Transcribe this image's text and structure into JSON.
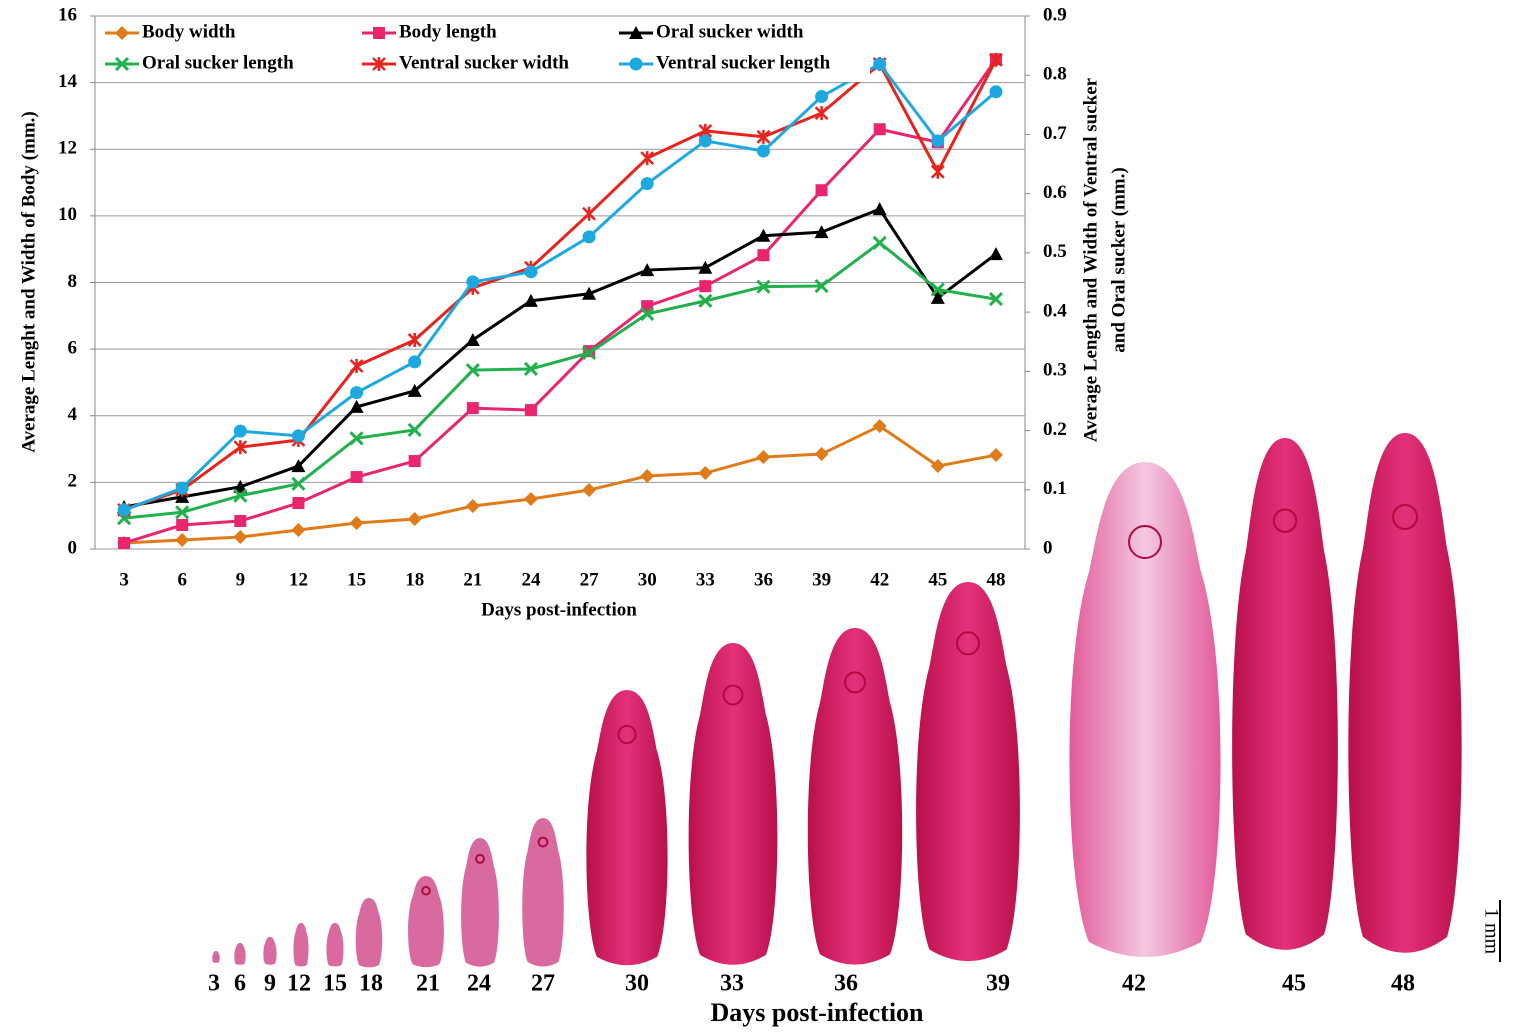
{
  "chart_data": {
    "type": "line",
    "ylabel": "Average Lenght and Width of Body (mm.)",
    "y2label": [
      "Average Length and Width of Ventral sucker",
      "and Oral sucker (mm.)"
    ],
    "xlabel": "Days post-infection",
    "categories": [
      3,
      6,
      9,
      12,
      15,
      18,
      21,
      24,
      27,
      30,
      33,
      36,
      39,
      42,
      45,
      48
    ],
    "ylim": [
      0,
      16
    ],
    "yticks": [
      0,
      2,
      4,
      6,
      8,
      10,
      12,
      14,
      16
    ],
    "y2lim": [
      0,
      0.9
    ],
    "y2ticks": [
      0,
      0.1,
      0.2,
      0.3,
      0.4,
      0.5,
      0.6,
      0.7,
      0.8,
      0.9
    ],
    "grid": true,
    "legend": "top-left",
    "series": [
      {
        "name": "Body width",
        "color": "#e07b1a",
        "marker": "diamond",
        "values": [
          0.18,
          0.27,
          0.36,
          0.57,
          0.78,
          0.9,
          1.29,
          1.5,
          1.77,
          2.19,
          2.28,
          2.76,
          2.85,
          3.69,
          2.49,
          2.82
        ]
      },
      {
        "name": "Body length",
        "color": "#e8256e",
        "marker": "square",
        "values": [
          0.18,
          0.72,
          0.84,
          1.38,
          2.16,
          2.64,
          4.23,
          4.17,
          5.94,
          7.29,
          7.89,
          8.82,
          10.77,
          12.6,
          12.21,
          14.7
        ]
      },
      {
        "name": "Oral sucker width",
        "color": "#000000",
        "marker": "triangle",
        "axis": "y2",
        "values": [
          0.071,
          0.088,
          0.105,
          0.14,
          0.24,
          0.267,
          0.353,
          0.419,
          0.431,
          0.471,
          0.475,
          0.529,
          0.535,
          0.574,
          0.424,
          0.498
        ]
      },
      {
        "name": "Oral sucker length",
        "color": "#22b04c",
        "marker": "x",
        "axis": "y2",
        "values": [
          0.052,
          0.062,
          0.09,
          0.11,
          0.187,
          0.201,
          0.302,
          0.304,
          0.331,
          0.397,
          0.419,
          0.443,
          0.444,
          0.517,
          0.438,
          0.422
        ]
      },
      {
        "name": "Ventral sucker width",
        "color": "#e8231e",
        "marker": "star",
        "axis": "y2",
        "values": [
          0.066,
          0.1,
          0.172,
          0.184,
          0.309,
          0.353,
          0.441,
          0.475,
          0.566,
          0.66,
          0.706,
          0.696,
          0.736,
          0.819,
          0.637,
          0.826
        ]
      },
      {
        "name": "Ventral sucker length",
        "color": "#1ea8e0",
        "marker": "circle",
        "axis": "y2",
        "values": [
          0.066,
          0.103,
          0.199,
          0.191,
          0.264,
          0.316,
          0.451,
          0.468,
          0.527,
          0.617,
          0.689,
          0.672,
          0.764,
          0.819,
          0.689,
          0.772
        ]
      }
    ]
  },
  "specimens": {
    "labels": [
      3,
      6,
      9,
      12,
      15,
      18,
      21,
      24,
      27,
      30,
      33,
      36,
      39,
      42,
      45,
      48
    ],
    "caption": "Days post-infection",
    "scale_label": "1 mm"
  }
}
